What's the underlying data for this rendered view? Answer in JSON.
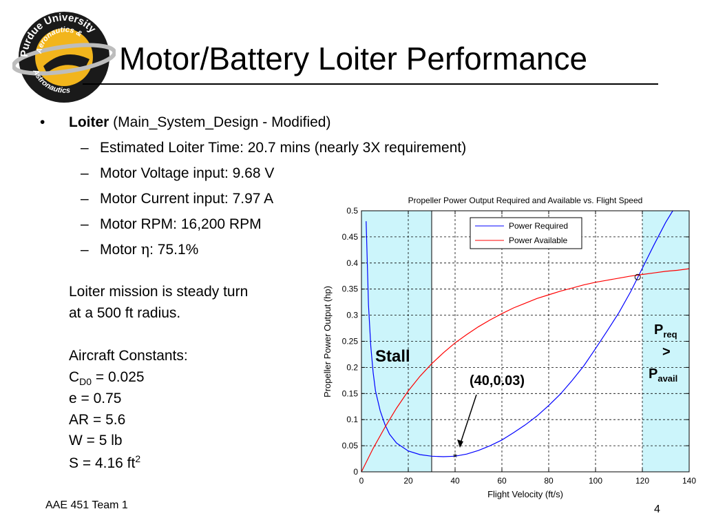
{
  "logo": {
    "text_top": "Purdue University",
    "text_mid": "Aeronautics &",
    "text_bottom": "Astronautics"
  },
  "title": "Motor/Battery Loiter Performance",
  "bullet": {
    "marker": "•",
    "bold": "Loiter",
    "rest": " (Main_System_Design - Modified)"
  },
  "sub_bullets": [
    {
      "dash": "–",
      "text": "Estimated Loiter Time: 20.7 mins (nearly 3X requirement)"
    },
    {
      "dash": "–",
      "text": "Motor Voltage input: 9.68 V"
    },
    {
      "dash": "–",
      "text": "Motor Current input: 7.97 A"
    },
    {
      "dash": "–",
      "text": "Motor RPM: 16,200 RPM"
    },
    {
      "dash": "–",
      "pre": "Motor ",
      "symbol": "η",
      "post": ": 75.1%"
    }
  ],
  "mission": {
    "line1": "Loiter mission is steady turn",
    "line2": "at a 500 ft radius."
  },
  "constants": {
    "heading": "Aircraft Constants:",
    "cd0_pre": "C",
    "cd0_sub": "D0",
    "cd0_post": " = 0.025",
    "e": "e = 0.75",
    "ar": "AR = 5.6",
    "w": "W = 5 lb",
    "s_pre": "S = 4.16 ft",
    "s_sup": "2"
  },
  "footer": {
    "team": "AAE 451 Team 1",
    "page": "4"
  },
  "chart_data": {
    "type": "line",
    "title": "Propeller Power Output Required and Available vs. Flight Speed",
    "xlabel": "Flight Velocity (ft/s)",
    "ylabel": "Propeller Power Output (hp)",
    "xlim": [
      0,
      140
    ],
    "ylim": [
      0,
      0.5
    ],
    "xticks": [
      "0",
      "20",
      "40",
      "60",
      "80",
      "100",
      "120",
      "140"
    ],
    "yticks": [
      "0",
      "0.05",
      "0.1",
      "0.15",
      "0.2",
      "0.25",
      "0.3",
      "0.35",
      "0.4",
      "0.45",
      "0.5"
    ],
    "grid": true,
    "legend_position": "top-right",
    "shaded_regions": [
      {
        "x0": 0,
        "x1": 30,
        "color": "#ccf5fb"
      },
      {
        "x0": 120,
        "x1": 140,
        "color": "#ccf5fb"
      }
    ],
    "series": [
      {
        "name": "Power Required",
        "color": "#0000ff",
        "x": [
          2,
          3,
          4,
          5,
          6,
          8,
          10,
          12,
          15,
          20,
          25,
          30,
          35,
          40,
          45,
          50,
          55,
          60,
          65,
          70,
          75,
          80,
          85,
          90,
          95,
          100,
          105,
          110,
          115,
          120,
          125,
          130,
          133
        ],
        "y": [
          0.48,
          0.32,
          0.24,
          0.19,
          0.155,
          0.117,
          0.091,
          0.072,
          0.055,
          0.04,
          0.033,
          0.03,
          0.029,
          0.03,
          0.034,
          0.041,
          0.05,
          0.061,
          0.075,
          0.09,
          0.107,
          0.127,
          0.149,
          0.175,
          0.203,
          0.236,
          0.27,
          0.305,
          0.345,
          0.39,
          0.435,
          0.478,
          0.5
        ]
      },
      {
        "name": "Power Available",
        "color": "#ff0000",
        "x": [
          0,
          5,
          10,
          15,
          20,
          25,
          30,
          35,
          40,
          45,
          50,
          55,
          60,
          65,
          70,
          75,
          80,
          85,
          90,
          95,
          100,
          105,
          110,
          115,
          120,
          125,
          130,
          135,
          140
        ],
        "y": [
          0,
          0.045,
          0.085,
          0.122,
          0.155,
          0.183,
          0.207,
          0.228,
          0.247,
          0.263,
          0.278,
          0.291,
          0.303,
          0.314,
          0.323,
          0.332,
          0.339,
          0.346,
          0.352,
          0.358,
          0.363,
          0.367,
          0.371,
          0.375,
          0.378,
          0.381,
          0.384,
          0.386,
          0.389
        ]
      }
    ],
    "markers": [
      {
        "x": 40,
        "y": 0.03,
        "symbol": "*"
      },
      {
        "x": 118,
        "y": 0.373,
        "symbol": "o"
      }
    ],
    "annotations": {
      "stall": "Stall",
      "point": "(40,0.03)",
      "preq_p": "P",
      "preq_sub": "req",
      "gt": ">",
      "pavail_p": "P",
      "pavail_sub": "avail"
    }
  }
}
